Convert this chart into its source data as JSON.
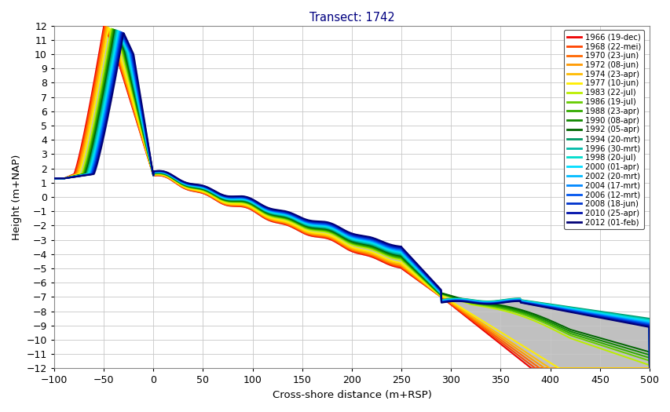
{
  "title": "Transect: 1742",
  "xlabel": "Cross-shore distance (m+RSP)",
  "ylabel": "Height (m+NAP)",
  "xlim": [
    -100,
    500
  ],
  "ylim": [
    -12,
    12
  ],
  "xticks": [
    -100,
    -50,
    0,
    50,
    100,
    150,
    200,
    250,
    300,
    350,
    400,
    450,
    500
  ],
  "yticks": [
    -12,
    -11,
    -10,
    -9,
    -8,
    -7,
    -6,
    -5,
    -4,
    -3,
    -2,
    -1,
    0,
    1,
    2,
    3,
    4,
    5,
    6,
    7,
    8,
    9,
    10,
    11,
    12
  ],
  "background_color": "#ffffff",
  "grid_color": "#c8c8c8",
  "title_color": "#000080",
  "series": [
    {
      "year": 1966,
      "label": "1966 (19-dec)",
      "color": "#ee0000"
    },
    {
      "year": 1968,
      "label": "1968 (22-mei)",
      "color": "#ff4400"
    },
    {
      "year": 1970,
      "label": "1970 (23-jun)",
      "color": "#ff6600"
    },
    {
      "year": 1972,
      "label": "1972 (08-jun)",
      "color": "#ff9900"
    },
    {
      "year": 1974,
      "label": "1974 (23-apr)",
      "color": "#ffbb00"
    },
    {
      "year": 1977,
      "label": "1977 (10-jun)",
      "color": "#ffee00"
    },
    {
      "year": 1983,
      "label": "1983 (22-jul)",
      "color": "#bbee00"
    },
    {
      "year": 1986,
      "label": "1986 (19-jul)",
      "color": "#66cc00"
    },
    {
      "year": 1988,
      "label": "1988 (23-apr)",
      "color": "#33aa00"
    },
    {
      "year": 1990,
      "label": "1990 (08-apr)",
      "color": "#118800"
    },
    {
      "year": 1992,
      "label": "1992 (05-apr)",
      "color": "#006600"
    },
    {
      "year": 1994,
      "label": "1994 (20-mrt)",
      "color": "#009966"
    },
    {
      "year": 1996,
      "label": "1996 (30-mrt)",
      "color": "#00bbaa"
    },
    {
      "year": 1998,
      "label": "1998 (20-jul)",
      "color": "#00ddcc"
    },
    {
      "year": 2000,
      "label": "2000 (01-apr)",
      "color": "#00ddff"
    },
    {
      "year": 2002,
      "label": "2002 (20-mrt)",
      "color": "#00bbff"
    },
    {
      "year": 2004,
      "label": "2004 (17-mrt)",
      "color": "#0088ff"
    },
    {
      "year": 2006,
      "label": "2006 (12-mrt)",
      "color": "#0055ee"
    },
    {
      "year": 2008,
      "label": "2008 (18-jun)",
      "color": "#0033cc"
    },
    {
      "year": 2010,
      "label": "2010 (25-apr)",
      "color": "#0011aa"
    },
    {
      "year": 2012,
      "label": "2012 (01-feb)",
      "color": "#000077"
    }
  ]
}
